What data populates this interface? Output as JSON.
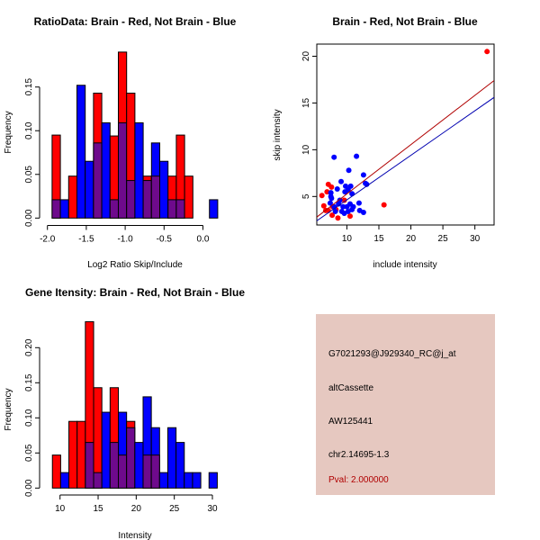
{
  "colors": {
    "red": "#ff0000",
    "blue": "#0000ff",
    "overlap": "#6e0a8c",
    "red_line": "#b00000",
    "blue_line": "#0000b0",
    "info_bg": "#e6c8c0",
    "pval": "#b00000"
  },
  "chart_data": [
    {
      "type": "bar",
      "subtype": "overlaid-histogram",
      "title": "RatioData: Brain - Red, Not Brain - Blue",
      "xlabel": "Log2 Ratio Skip/Include",
      "ylabel": "Frequency",
      "xlim": [
        -2.0,
        0.2
      ],
      "ylim": [
        0,
        0.19
      ],
      "xticks": [
        "-2.0",
        "-1.5",
        "-1.0",
        "-0.5",
        "0.0"
      ],
      "xtick_values": [
        -2.0,
        -1.5,
        -1.0,
        -0.5,
        0.0
      ],
      "yticks": [
        "0.00",
        "0.05",
        "0.10",
        "0.15"
      ],
      "ytick_values": [
        0,
        0.05,
        0.1,
        0.15
      ],
      "bin_start": -1.94,
      "bin_width": 0.1065,
      "series": [
        {
          "name": "Brain",
          "color": "red",
          "values": [
            0.095,
            0,
            0.048,
            0,
            0,
            0.143,
            0,
            0.094,
            0.19,
            0.143,
            0,
            0.048,
            0.048,
            0,
            0.048,
            0.095,
            0.048,
            0,
            0,
            0
          ]
        },
        {
          "name": "Not Brain",
          "color": "blue",
          "values": [
            0.021,
            0.021,
            0,
            0.152,
            0.065,
            0.086,
            0.109,
            0.021,
            0.109,
            0.043,
            0.109,
            0.043,
            0.086,
            0.065,
            0.021,
            0.021,
            0,
            0,
            0,
            0.021
          ]
        }
      ]
    },
    {
      "type": "scatter",
      "title": "Brain - Red, Not Brain - Blue",
      "xlabel": "include intensity",
      "ylabel": "skip intensity",
      "xlim": [
        5.3,
        33.0
      ],
      "ylim": [
        1.95,
        21.3
      ],
      "xticks": [
        "10",
        "15",
        "20",
        "25",
        "30"
      ],
      "xtick_values": [
        10,
        15,
        20,
        25,
        30
      ],
      "yticks": [
        "5",
        "10",
        "15",
        "20"
      ],
      "ytick_values": [
        5,
        10,
        15,
        20
      ],
      "series": [
        {
          "name": "Brain",
          "color": "red",
          "points": [
            [
              31.9,
              20.5
            ],
            [
              15.8,
              4.1
            ],
            [
              6.1,
              5.1
            ],
            [
              6.4,
              4.0
            ],
            [
              7.1,
              6.3
            ],
            [
              6.9,
              5.5
            ],
            [
              7.6,
              6.0
            ],
            [
              6.7,
              3.5
            ],
            [
              7.1,
              3.5
            ],
            [
              7.7,
              3.0
            ],
            [
              8.6,
              2.7
            ],
            [
              10.5,
              2.9
            ],
            [
              7.8,
              3.9
            ],
            [
              8.3,
              3.6
            ],
            [
              9.6,
              4.6
            ]
          ],
          "fit_line": [
            [
              5.3,
              2.8
            ],
            [
              33.0,
              17.4
            ]
          ]
        },
        {
          "name": "Not Brain",
          "color": "blue",
          "points": [
            [
              8.0,
              9.2
            ],
            [
              11.5,
              9.3
            ],
            [
              10.3,
              7.8
            ],
            [
              12.6,
              7.3
            ],
            [
              9.1,
              6.6
            ],
            [
              12.9,
              6.4
            ],
            [
              13.1,
              6.3
            ],
            [
              9.8,
              6.1
            ],
            [
              10.6,
              6.1
            ],
            [
              8.5,
              5.8
            ],
            [
              10.2,
              5.7
            ],
            [
              9.7,
              5.5
            ],
            [
              10.8,
              5.3
            ],
            [
              7.5,
              5.4
            ],
            [
              7.5,
              5.0
            ],
            [
              7.6,
              4.8
            ],
            [
              11.9,
              4.3
            ],
            [
              12.0,
              3.5
            ],
            [
              12.6,
              3.3
            ],
            [
              7.4,
              4.3
            ],
            [
              8.0,
              3.9
            ],
            [
              8.7,
              4.2
            ],
            [
              9.4,
              3.9
            ],
            [
              9.2,
              3.4
            ],
            [
              10.0,
              3.9
            ],
            [
              10.5,
              4.2
            ],
            [
              10.8,
              3.6
            ],
            [
              10.2,
              3.4
            ],
            [
              9.6,
              3.2
            ],
            [
              8.2,
              3.4
            ],
            [
              8.9,
              4.6
            ],
            [
              11.0,
              3.9
            ]
          ],
          "fit_line": [
            [
              5.3,
              2.4
            ],
            [
              33.0,
              15.6
            ]
          ]
        }
      ]
    },
    {
      "type": "bar",
      "subtype": "overlaid-histogram",
      "title": "Gene Itensity: Brain - Red, Not Brain - Blue",
      "xlabel": "Intensity",
      "ylabel": "Frequency",
      "xlim": [
        9,
        31
      ],
      "ylim": [
        0,
        0.24
      ],
      "xticks": [
        "10",
        "15",
        "20",
        "25",
        "30"
      ],
      "xtick_values": [
        10,
        15,
        20,
        25,
        30
      ],
      "yticks": [
        "0.00",
        "0.05",
        "0.10",
        "0.15",
        "0.20"
      ],
      "ytick_values": [
        0,
        0.05,
        0.1,
        0.15,
        0.2
      ],
      "bin_start": 9.0,
      "bin_width": 1.082,
      "series": [
        {
          "name": "Brain",
          "color": "red",
          "values": [
            0.047,
            0,
            0.095,
            0.095,
            0.237,
            0.143,
            0,
            0.143,
            0.047,
            0.095,
            0,
            0.047,
            0.047,
            0,
            0,
            0,
            0,
            0,
            0,
            0
          ]
        },
        {
          "name": "Not Brain",
          "color": "blue",
          "values": [
            0,
            0.022,
            0,
            0,
            0.065,
            0.022,
            0.108,
            0.065,
            0.108,
            0.086,
            0.065,
            0.13,
            0.086,
            0.022,
            0.086,
            0.065,
            0.022,
            0.022,
            0,
            0.022
          ]
        }
      ]
    }
  ],
  "info_panel": {
    "probe_id": "G7021293@J929340_RC@j_at",
    "event_type": "altCassette",
    "accession": "AW125441",
    "location": "chr2.14695-1.3",
    "pval": "Pval: 2.000000"
  }
}
